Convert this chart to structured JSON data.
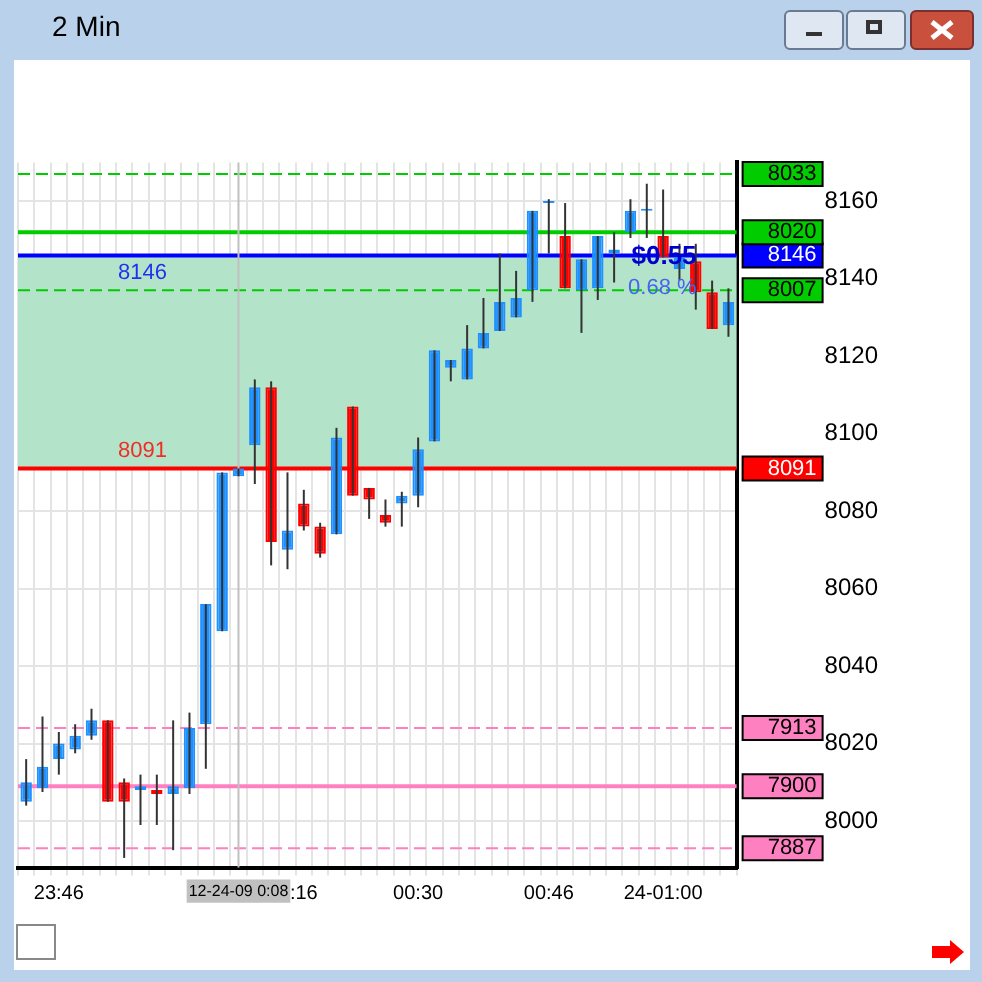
{
  "chart_data": {
    "type": "candlestick",
    "title": "2 Min",
    "categories": [
      null,
      null,
      "23:46",
      null,
      null,
      null,
      null,
      null,
      null,
      null,
      null,
      null,
      null,
      "12-24-09 0:08",
      null,
      null,
      null,
      ":16",
      null,
      null,
      null,
      null,
      null,
      null,
      "00:30",
      null,
      null,
      null,
      null,
      null,
      null,
      null,
      "00:46",
      null,
      null,
      null,
      null,
      null,
      null,
      "24-01:00",
      null,
      null,
      null,
      null
    ],
    "ohlc": [
      [
        8005,
        8016,
        8004,
        8010
      ],
      [
        8008.5,
        8027,
        8007.5,
        8014
      ],
      [
        8016,
        8023,
        8012,
        8020
      ],
      [
        8018.5,
        8025,
        8017.5,
        8022
      ],
      [
        8022,
        8029,
        8021,
        8026
      ],
      [
        8026,
        8026,
        8005,
        8005
      ],
      [
        8010,
        8011,
        7990.5,
        8005
      ],
      [
        8008,
        8012,
        7999,
        8009
      ],
      [
        8008,
        8012,
        7999,
        8007
      ],
      [
        8007,
        8026,
        7992.5,
        8009
      ],
      [
        8008.5,
        8028,
        8007,
        8024
      ],
      [
        8025,
        8056,
        8013.5,
        8056
      ],
      [
        8049,
        8090,
        8049,
        8090
      ],
      [
        8089,
        8091,
        8089,
        8091
      ],
      [
        8097,
        8114,
        8087,
        8112
      ],
      [
        8112,
        8113.5,
        8066,
        8072
      ],
      [
        8070,
        8090,
        8065,
        8075
      ],
      [
        8082,
        8085.5,
        8075,
        8076
      ],
      [
        8076,
        8077,
        8068,
        8069
      ],
      [
        8074,
        8101.5,
        8074,
        8099
      ],
      [
        8107,
        8107,
        8084,
        8084
      ],
      [
        8086,
        8086,
        8078,
        8083
      ],
      [
        8079,
        8083,
        8076,
        8077
      ],
      [
        8082,
        8085,
        8076,
        8084
      ],
      [
        8084,
        8099,
        8081,
        8096
      ],
      [
        8098,
        8121.5,
        8098,
        8121.5
      ],
      [
        8117,
        8119,
        8113.5,
        8119
      ],
      [
        8114,
        8128,
        8114,
        8122
      ],
      [
        8122,
        8135,
        8122,
        8126
      ],
      [
        8126.5,
        8146.5,
        8126.5,
        8134
      ],
      [
        8130,
        8142,
        8130,
        8135
      ],
      [
        8137,
        8157.5,
        8134,
        8157.5
      ],
      [
        8159.5,
        8160.5,
        8146.5,
        8159.5
      ],
      [
        8151,
        8159.5,
        8137.5,
        8137.5
      ],
      [
        8137,
        8145,
        8126,
        8145
      ],
      [
        8137.5,
        8151,
        8134.5,
        8151
      ],
      [
        8146.5,
        8152,
        8139,
        8147.5
      ],
      [
        8152,
        8160.5,
        8150.5,
        8157.5
      ],
      [
        8157.5,
        8164.5,
        8150.5,
        8157.5
      ],
      [
        8151,
        8163,
        8145.5,
        8145.5
      ],
      [
        8142.5,
        8149,
        8139.5,
        8145.5
      ],
      [
        8144.5,
        8149,
        8132,
        8136.5
      ],
      [
        8136.5,
        8139.5,
        8127,
        8127
      ],
      [
        8128,
        8137.5,
        8125,
        8134
      ]
    ],
    "colors": [
      "#1e90ff",
      "#1e90ff",
      "#1e90ff",
      "#1e90ff",
      "#1e90ff",
      "#ff0000",
      "#ff0000",
      "#1e90ff",
      "#ff0000",
      "#1e90ff",
      "#1e90ff",
      "#1e90ff",
      "#1e90ff",
      "#1e90ff",
      "#1e90ff",
      "#ff0000",
      "#1e90ff",
      "#ff0000",
      "#ff0000",
      "#1e90ff",
      "#ff0000",
      "#ff0000",
      "#ff0000",
      "#1e90ff",
      "#1e90ff",
      "#1e90ff",
      "#1e90ff",
      "#1e90ff",
      "#1e90ff",
      "#1e90ff",
      "#1e90ff",
      "#1e90ff",
      "#1e90ff",
      "#ff0000",
      "#1e90ff",
      "#1e90ff",
      "#1e90ff",
      "#1e90ff",
      "#1e90ff",
      "#ff0000",
      "#1e90ff",
      "#ff0000",
      "#ff0000",
      "#1e90ff"
    ],
    "ylim": [
      7988,
      8170
    ],
    "yticks": [
      8000,
      8020,
      8040,
      8060,
      8080,
      8100,
      8120,
      8140,
      8160
    ],
    "grid": true,
    "ref_lines": [
      {
        "axis": "y",
        "value": 8167,
        "color": "#00cc00",
        "line_style": "dashed"
      },
      {
        "axis": "y",
        "value": 8152,
        "color": "#00cc00",
        "line_style": "solid"
      },
      {
        "axis": "y",
        "value": 8146,
        "label": "8146",
        "color": "#0000ff",
        "line_style": "solid"
      },
      {
        "axis": "y",
        "value": 8137,
        "color": "#00cc00",
        "line_style": "dashed"
      },
      {
        "axis": "y",
        "value": 8091,
        "label": "8091",
        "color": "#ff0000",
        "line_style": "solid"
      },
      {
        "axis": "y",
        "value": 8024,
        "color": "#ff80c0",
        "line_style": "dashed"
      },
      {
        "axis": "y",
        "value": 8009,
        "color": "#ff80c0",
        "line_style": "solid"
      },
      {
        "axis": "y",
        "value": 7993,
        "color": "#ff80c0",
        "line_style": "dashed"
      },
      {
        "axis": "x",
        "value": "12-24-09 0:08",
        "color": "#c0c0c0"
      }
    ],
    "bands": [
      {
        "axis": "y",
        "from": 8091,
        "to": 8146,
        "color": "#b3e3c8"
      }
    ],
    "annotations": [
      {
        "text": "8146",
        "y": 8146
      },
      {
        "text": "8091",
        "y": 8091
      },
      "8033",
      "8020",
      "8007",
      "7913",
      "7900",
      "7887",
      "$0.55",
      "0.68 %"
    ]
  }
}
